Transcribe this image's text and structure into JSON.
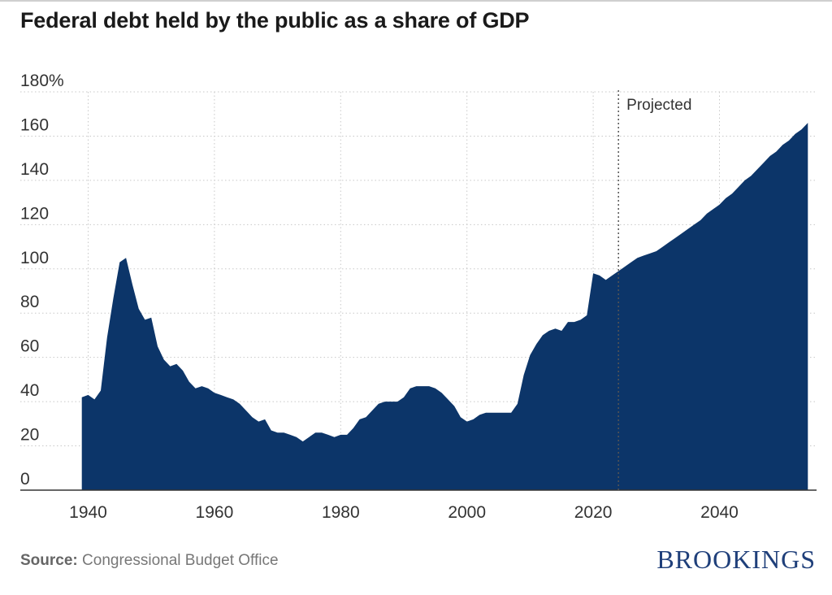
{
  "chart_data": {
    "type": "area",
    "title": "Federal debt held by the public as a share of GDP",
    "xlabel": "",
    "ylabel": "",
    "xlim": [
      1930,
      2055
    ],
    "ylim": [
      0,
      180
    ],
    "y_ticks": [
      {
        "value": 0,
        "label": "0"
      },
      {
        "value": 20,
        "label": "20"
      },
      {
        "value": 40,
        "label": "40"
      },
      {
        "value": 60,
        "label": "60"
      },
      {
        "value": 80,
        "label": "80"
      },
      {
        "value": 100,
        "label": "100"
      },
      {
        "value": 120,
        "label": "120"
      },
      {
        "value": 140,
        "label": "140"
      },
      {
        "value": 160,
        "label": "160"
      },
      {
        "value": 180,
        "label": "180%"
      }
    ],
    "x_ticks": [
      {
        "value": 1940,
        "label": "1940"
      },
      {
        "value": 1960,
        "label": "1960"
      },
      {
        "value": 1980,
        "label": "1980"
      },
      {
        "value": 2000,
        "label": "2000"
      },
      {
        "value": 2020,
        "label": "2020"
      },
      {
        "value": 2040,
        "label": "2040"
      }
    ],
    "grid": true,
    "fill_color": "#0c3569",
    "projection_start": 2024,
    "projection_label": "Projected",
    "series": [
      {
        "x": [
          1939,
          1940,
          1941,
          1942,
          1943,
          1944,
          1945,
          1946,
          1947,
          1948,
          1949,
          1950,
          1951,
          1952,
          1953,
          1954,
          1955,
          1956,
          1957,
          1958,
          1959,
          1960,
          1961,
          1962,
          1963,
          1964,
          1965,
          1966,
          1967,
          1968,
          1969,
          1970,
          1971,
          1972,
          1973,
          1974,
          1975,
          1976,
          1977,
          1978,
          1979,
          1980,
          1981,
          1982,
          1983,
          1984,
          1985,
          1986,
          1987,
          1988,
          1989,
          1990,
          1991,
          1992,
          1993,
          1994,
          1995,
          1996,
          1997,
          1998,
          1999,
          2000,
          2001,
          2002,
          2003,
          2004,
          2005,
          2006,
          2007,
          2008,
          2009,
          2010,
          2011,
          2012,
          2013,
          2014,
          2015,
          2016,
          2017,
          2018,
          2019,
          2020,
          2021,
          2022,
          2023,
          2024,
          2025,
          2026,
          2027,
          2028,
          2029,
          2030,
          2031,
          2032,
          2033,
          2034,
          2035,
          2036,
          2037,
          2038,
          2039,
          2040,
          2041,
          2042,
          2043,
          2044,
          2045,
          2046,
          2047,
          2048,
          2049,
          2050,
          2051,
          2052,
          2053,
          2054
        ],
        "values": [
          42,
          43,
          41,
          45,
          69,
          87,
          103,
          105,
          93,
          82,
          77,
          78,
          65,
          59,
          56,
          57,
          54,
          49,
          46,
          47,
          46,
          44,
          43,
          42,
          41,
          39,
          36,
          33,
          31,
          32,
          27,
          26,
          26,
          25,
          24,
          22,
          24,
          26,
          26,
          25,
          24,
          25,
          25,
          28,
          32,
          33,
          36,
          39,
          40,
          40,
          40,
          42,
          46,
          47,
          47,
          47,
          46,
          44,
          41,
          38,
          33,
          31,
          32,
          34,
          35,
          35,
          35,
          35,
          35,
          39,
          52,
          61,
          66,
          70,
          72,
          73,
          72,
          76,
          76,
          77,
          79,
          98,
          97,
          95,
          97,
          99,
          101,
          103,
          105,
          106,
          107,
          108,
          110,
          112,
          114,
          116,
          118,
          120,
          122,
          125,
          127,
          129,
          132,
          134,
          137,
          140,
          142,
          145,
          148,
          151,
          153,
          156,
          158,
          161,
          163,
          166
        ]
      }
    ]
  },
  "source": {
    "label": "Source:",
    "text": "Congressional Budget Office"
  },
  "logo_text": "BROOKINGS"
}
